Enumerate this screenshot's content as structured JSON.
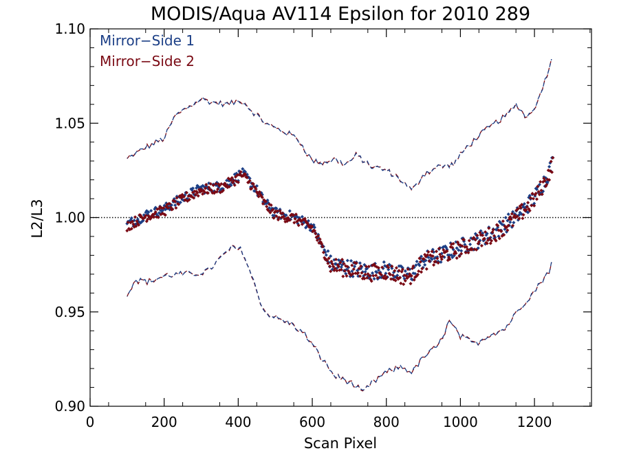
{
  "chart_data": {
    "type": "scatter",
    "title": "MODIS/Aqua AV114 Epsilon for 2010 289",
    "xlabel": "Scan Pixel",
    "ylabel": "L2/L3",
    "xlim": [
      0,
      1354
    ],
    "ylim": [
      0.9,
      1.1
    ],
    "x_ticks": [
      0,
      200,
      400,
      600,
      800,
      1000,
      1200
    ],
    "x_tick_labels": [
      "0",
      "200",
      "400",
      "600",
      "800",
      "1000",
      "1200"
    ],
    "y_ticks": [
      0.9,
      0.95,
      1.0,
      1.05,
      1.1
    ],
    "y_tick_labels": [
      "0.90",
      "0.95",
      "1.00",
      "1.05",
      "1.10"
    ],
    "reference_line": 1.0,
    "legend_position": "top-left",
    "colors": {
      "ms1": "#1c3f86",
      "ms2": "#7a0a14",
      "axis": "#000000"
    },
    "series": [
      {
        "name": "Mirror−Side 1",
        "color": "#1c3f86"
      },
      {
        "name": "Mirror−Side 2",
        "color": "#7a0a14"
      }
    ],
    "mean_curve": {
      "x": [
        100,
        150,
        200,
        250,
        300,
        350,
        380,
        410,
        440,
        470,
        500,
        550,
        600,
        630,
        650,
        700,
        750,
        800,
        850,
        870,
        900,
        950,
        1000,
        1050,
        1100,
        1150,
        1200,
        1230,
        1250
      ],
      "y": [
        0.996,
        1.001,
        1.004,
        1.01,
        1.015,
        1.016,
        1.019,
        1.023,
        1.017,
        1.008,
        1.002,
        1.0,
        0.995,
        0.983,
        0.975,
        0.973,
        0.971,
        0.972,
        0.969,
        0.97,
        0.977,
        0.98,
        0.984,
        0.988,
        0.993,
        1.0,
        1.01,
        1.02,
        1.029
      ]
    },
    "upper_bound": {
      "x": [
        100,
        140,
        180,
        200,
        230,
        260,
        300,
        330,
        370,
        410,
        440,
        480,
        520,
        560,
        600,
        630,
        660,
        690,
        720,
        760,
        800,
        840,
        870,
        900,
        940,
        980,
        1020,
        1060,
        1100,
        1130,
        1150,
        1180,
        1210,
        1240,
        1250
      ],
      "y": [
        1.031,
        1.036,
        1.04,
        1.042,
        1.054,
        1.058,
        1.063,
        1.061,
        1.06,
        1.062,
        1.056,
        1.049,
        1.046,
        1.042,
        1.03,
        1.029,
        1.031,
        1.028,
        1.033,
        1.027,
        1.025,
        1.02,
        1.014,
        1.023,
        1.027,
        1.028,
        1.038,
        1.045,
        1.051,
        1.055,
        1.06,
        1.053,
        1.062,
        1.08,
        1.085
      ]
    },
    "lower_bound": {
      "x": [
        100,
        120,
        160,
        200,
        240,
        280,
        320,
        350,
        380,
        410,
        440,
        470,
        500,
        540,
        580,
        620,
        660,
        690,
        720,
        735,
        760,
        800,
        840,
        870,
        900,
        940,
        970,
        1000,
        1040,
        1080,
        1120,
        1160,
        1200,
        1240,
        1250
      ],
      "y": [
        0.959,
        0.967,
        0.966,
        0.969,
        0.97,
        0.97,
        0.972,
        0.978,
        0.984,
        0.983,
        0.967,
        0.95,
        0.947,
        0.944,
        0.938,
        0.927,
        0.916,
        0.914,
        0.91,
        0.907,
        0.912,
        0.918,
        0.921,
        0.918,
        0.926,
        0.932,
        0.945,
        0.937,
        0.933,
        0.938,
        0.941,
        0.952,
        0.961,
        0.972,
        0.978
      ]
    }
  }
}
